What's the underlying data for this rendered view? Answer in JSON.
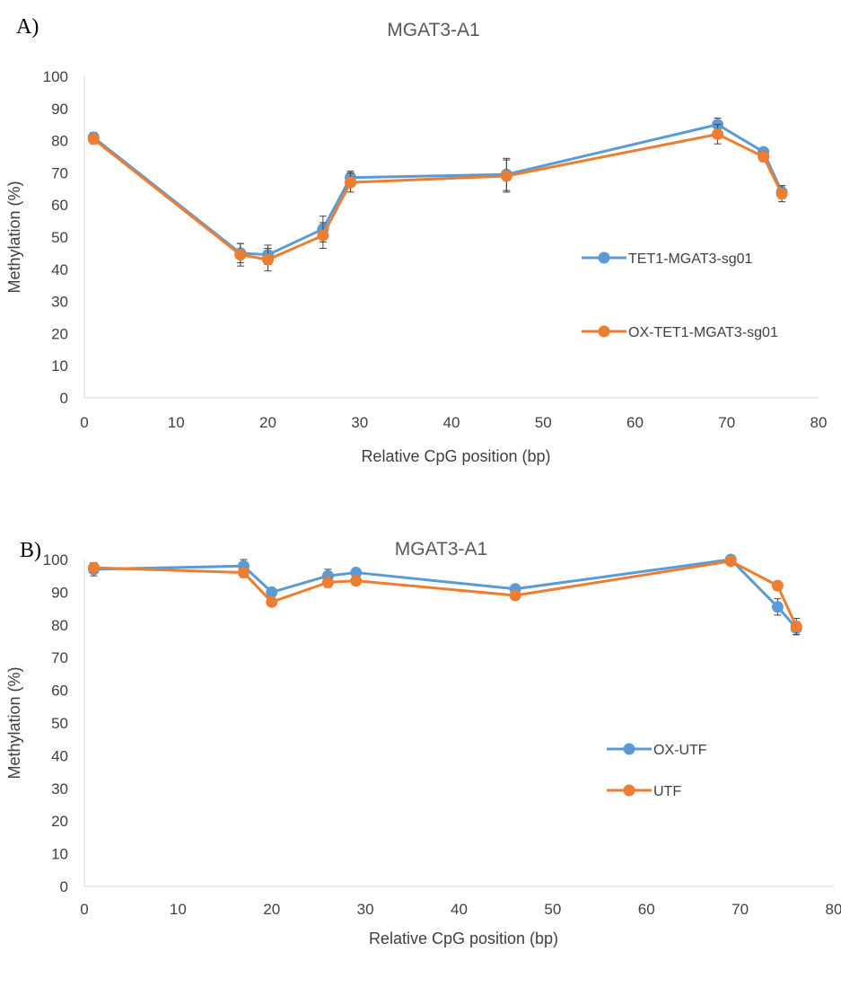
{
  "chart_data": [
    {
      "type": "line",
      "panel_label": "A)",
      "title": "MGAT3-A1",
      "xlabel": "Relative CpG position (bp)",
      "ylabel": "Methylation (%)",
      "xlim": [
        0,
        80
      ],
      "ylim": [
        0,
        100
      ],
      "xticks": [
        0,
        10,
        20,
        30,
        40,
        50,
        60,
        70,
        80
      ],
      "yticks": [
        0,
        10,
        20,
        30,
        40,
        50,
        60,
        70,
        80,
        90,
        100
      ],
      "grid": false,
      "legend_position": "right",
      "series": [
        {
          "name": "TET1-MGAT3-sg01",
          "color": "#5B9BD5",
          "x": [
            1,
            17,
            20,
            26,
            29,
            46,
            69,
            74,
            76
          ],
          "y": [
            81,
            45,
            44.5,
            52.5,
            68.5,
            69.5,
            85,
            76.5,
            64
          ],
          "err": [
            1.5,
            3,
            3,
            4,
            2,
            5,
            2,
            1,
            2
          ]
        },
        {
          "name": "OX-TET1-MGAT3-sg01",
          "color": "#ED7D31",
          "x": [
            1,
            17,
            20,
            26,
            29,
            46,
            69,
            74,
            76
          ],
          "y": [
            80.5,
            44.5,
            43,
            50.5,
            67,
            69,
            82,
            75,
            63.5
          ],
          "err": [
            1.5,
            3.5,
            3.5,
            4,
            3,
            5,
            3,
            1.5,
            2.5
          ]
        }
      ]
    },
    {
      "type": "line",
      "panel_label": "B)",
      "title": "MGAT3-A1",
      "xlabel": "Relative CpG position (bp)",
      "ylabel": "Methylation (%)",
      "xlim": [
        0,
        80
      ],
      "ylim": [
        0,
        100
      ],
      "xticks": [
        0,
        10,
        20,
        30,
        40,
        50,
        60,
        70,
        80
      ],
      "yticks": [
        0,
        10,
        20,
        30,
        40,
        50,
        60,
        70,
        80,
        90,
        100
      ],
      "grid": false,
      "legend_position": "right",
      "series": [
        {
          "name": "OX-UTF",
          "color": "#5B9BD5",
          "x": [
            1,
            17,
            20,
            26,
            29,
            46,
            69,
            74,
            76
          ],
          "y": [
            97,
            98,
            90,
            95,
            96,
            91,
            100,
            85.5,
            79
          ],
          "err": [
            2,
            2,
            1,
            2,
            1,
            1,
            0.5,
            2.5,
            2
          ]
        },
        {
          "name": "UTF",
          "color": "#ED7D31",
          "x": [
            1,
            17,
            20,
            26,
            29,
            46,
            69,
            74,
            76
          ],
          "y": [
            97.5,
            96,
            87,
            93,
            93.5,
            89,
            99.5,
            92,
            79.5
          ],
          "err": [
            1.5,
            1.5,
            1,
            1.5,
            1,
            1,
            0.5,
            1,
            2.5
          ]
        }
      ]
    }
  ]
}
